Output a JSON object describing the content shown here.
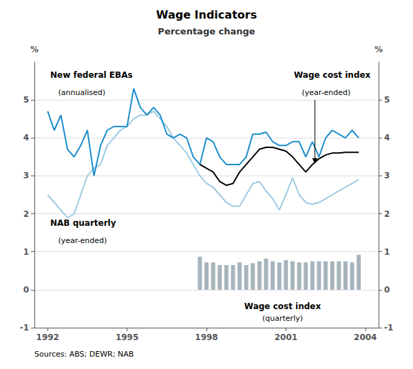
{
  "chart_data": {
    "type": "line",
    "title": "Wage Indicators",
    "subtitle": "Percentage change",
    "ylabel": "%",
    "y2label": "%",
    "xlim": [
      1991.5,
      2004.5
    ],
    "xticks": [
      1992,
      1995,
      1998,
      2001,
      2004
    ],
    "ylim": [
      -1,
      6
    ],
    "yticks": [
      -1,
      0,
      1,
      2,
      3,
      4,
      5
    ],
    "y2lim": [
      -1,
      6
    ],
    "y2ticks": [
      -1,
      0,
      1,
      2,
      3,
      4,
      5
    ],
    "grid": true,
    "annotations": [
      "Sources: ABS; DEWR; NAB"
    ],
    "series": [
      {
        "name": "NAB quarterly",
        "annotation": "(year-ended)",
        "type": "line",
        "color": "#9ecae1",
        "x": [
          1992.0,
          1992.25,
          1992.5,
          1992.75,
          1993.0,
          1993.25,
          1993.5,
          1993.75,
          1994.0,
          1994.25,
          1994.5,
          1994.75,
          1995.0,
          1995.25,
          1995.5,
          1995.75,
          1996.0,
          1996.25,
          1996.5,
          1996.75,
          1997.0,
          1997.25,
          1997.5,
          1997.75,
          1998.0,
          1998.25,
          1998.5,
          1998.75,
          1999.0,
          1999.25,
          1999.5,
          1999.75,
          2000.0,
          2000.25,
          2000.5,
          2000.75,
          2001.0,
          2001.25,
          2001.5,
          2001.75,
          2002.0,
          2002.25,
          2002.5,
          2002.75,
          2003.0,
          2003.25,
          2003.5,
          2003.75
        ],
        "values": [
          2.5,
          2.3,
          2.1,
          1.9,
          2.0,
          2.5,
          3.0,
          3.2,
          3.3,
          3.8,
          4.0,
          4.2,
          4.3,
          4.5,
          4.6,
          4.6,
          4.7,
          4.5,
          4.3,
          4.0,
          3.8,
          3.6,
          3.3,
          3.0,
          2.8,
          2.7,
          2.5,
          2.3,
          2.2,
          2.2,
          2.5,
          2.8,
          2.85,
          2.6,
          2.4,
          2.1,
          2.5,
          2.95,
          2.5,
          2.3,
          2.25,
          2.3,
          2.4,
          2.5,
          2.6,
          2.7,
          2.8,
          2.9
        ]
      },
      {
        "name": "New federal EBAs",
        "annotation": "(annualised)",
        "type": "line",
        "color": "#1a8cca",
        "x": [
          1992.0,
          1992.25,
          1992.5,
          1992.75,
          1993.0,
          1993.25,
          1993.5,
          1993.75,
          1994.0,
          1994.25,
          1994.5,
          1994.75,
          1995.0,
          1995.25,
          1995.5,
          1995.75,
          1996.0,
          1996.25,
          1996.5,
          1996.75,
          1997.0,
          1997.25,
          1997.5,
          1997.75,
          1998.0,
          1998.25,
          1998.5,
          1998.75,
          1999.0,
          1999.25,
          1999.5,
          1999.75,
          2000.0,
          2000.25,
          2000.5,
          2000.75,
          2001.0,
          2001.25,
          2001.5,
          2001.75,
          2002.0,
          2002.25,
          2002.5,
          2002.75,
          2003.0,
          2003.25,
          2003.5,
          2003.75
        ],
        "values": [
          4.7,
          4.2,
          4.6,
          3.7,
          3.5,
          3.8,
          4.2,
          3.0,
          3.8,
          4.2,
          4.3,
          4.3,
          4.3,
          5.3,
          4.8,
          4.6,
          4.8,
          4.6,
          4.1,
          4.0,
          4.1,
          4.0,
          3.5,
          3.3,
          4.0,
          3.9,
          3.5,
          3.3,
          3.3,
          3.3,
          3.5,
          4.1,
          4.1,
          4.15,
          3.9,
          3.8,
          3.8,
          3.9,
          3.9,
          3.5,
          3.9,
          3.5,
          4.0,
          4.2,
          4.1,
          4.0,
          4.2,
          4.0
        ]
      },
      {
        "name": "Wage cost index",
        "annotation": "(year-ended)",
        "type": "line",
        "color": "#000000",
        "x": [
          1997.75,
          1998.0,
          1998.25,
          1998.5,
          1998.75,
          1999.0,
          1999.25,
          1999.5,
          1999.75,
          2000.0,
          2000.25,
          2000.5,
          2000.75,
          2001.0,
          2001.25,
          2001.5,
          2001.75,
          2002.0,
          2002.25,
          2002.5,
          2002.75,
          2003.0,
          2003.25,
          2003.5,
          2003.75
        ],
        "values": [
          3.3,
          3.2,
          3.1,
          2.85,
          2.75,
          2.8,
          3.1,
          3.3,
          3.5,
          3.7,
          3.75,
          3.75,
          3.7,
          3.65,
          3.5,
          3.3,
          3.1,
          3.3,
          3.45,
          3.55,
          3.6,
          3.6,
          3.62,
          3.62,
          3.62
        ]
      },
      {
        "name": "Wage cost index",
        "annotation": "(quarterly)",
        "type": "bar",
        "color": "#a8b4bc",
        "x": [
          1997.75,
          1998.0,
          1998.25,
          1998.5,
          1998.75,
          1999.0,
          1999.25,
          1999.5,
          1999.75,
          2000.0,
          2000.25,
          2000.5,
          2000.75,
          2001.0,
          2001.25,
          2001.5,
          2001.75,
          2002.0,
          2002.25,
          2002.5,
          2002.75,
          2003.0,
          2003.25,
          2003.5,
          2003.75
        ],
        "values": [
          0.87,
          0.72,
          0.72,
          0.65,
          0.65,
          0.65,
          0.72,
          0.65,
          0.7,
          0.75,
          0.82,
          0.75,
          0.72,
          0.78,
          0.75,
          0.72,
          0.72,
          0.75,
          0.75,
          0.75,
          0.75,
          0.75,
          0.75,
          0.72,
          0.92
        ]
      }
    ]
  }
}
